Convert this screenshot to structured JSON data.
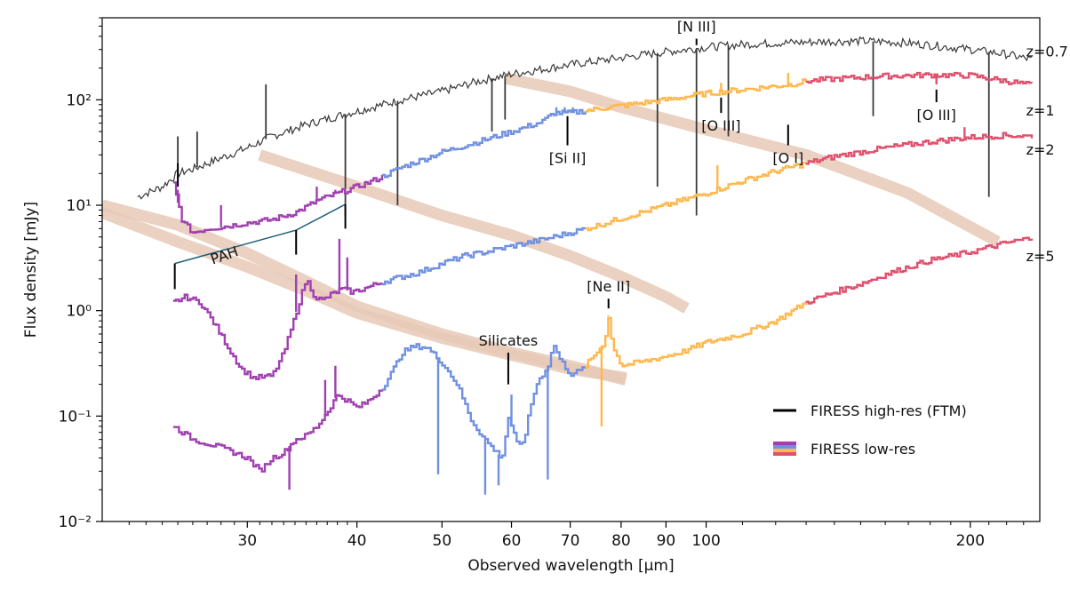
{
  "chart_data": {
    "type": "line",
    "xlabel": "Observed wavelength [μm]",
    "ylabel": "Flux density [mJy]",
    "xscale": "log",
    "yscale": "log",
    "xlim": [
      20.5,
      240
    ],
    "ylim": [
      0.01,
      600
    ],
    "grid": false,
    "x_ticks": [
      {
        "value": 30,
        "label": "30"
      },
      {
        "value": 40,
        "label": "40"
      },
      {
        "value": 50,
        "label": "50"
      },
      {
        "value": 60,
        "label": "60"
      },
      {
        "value": 70,
        "label": "70"
      },
      {
        "value": 80,
        "label": "80"
      },
      {
        "value": 90,
        "label": "90"
      },
      {
        "value": 100,
        "label": "100"
      },
      {
        "value": 200,
        "label": "200"
      }
    ],
    "y_ticks": [
      {
        "value": 0.01,
        "label": "10⁻²"
      },
      {
        "value": 0.1,
        "label": "10⁻¹"
      },
      {
        "value": 1,
        "label": "10⁰"
      },
      {
        "value": 10,
        "label": "10¹"
      },
      {
        "value": 100,
        "label": "10²"
      }
    ],
    "band_colors": [
      "#a040b0",
      "#7090e0",
      "#ffb84d",
      "#e0506e"
    ],
    "band_edges": [
      43,
      73,
      130
    ],
    "highres_color": "#3a3a3a",
    "series": [
      {
        "name": "z=0.7",
        "mode": "highres",
        "points": [
          [
            22.5,
            12
          ],
          [
            24,
            15
          ],
          [
            25,
            20
          ],
          [
            26,
            22
          ],
          [
            28,
            28
          ],
          [
            30,
            35
          ],
          [
            32,
            45
          ],
          [
            35,
            58
          ],
          [
            38,
            70
          ],
          [
            40,
            78
          ],
          [
            45,
            100
          ],
          [
            50,
            120
          ],
          [
            55,
            150
          ],
          [
            60,
            175
          ],
          [
            65,
            195
          ],
          [
            70,
            215
          ],
          [
            80,
            250
          ],
          [
            90,
            285
          ],
          [
            100,
            315
          ],
          [
            110,
            335
          ],
          [
            120,
            345
          ],
          [
            130,
            352
          ],
          [
            140,
            358
          ],
          [
            150,
            360
          ],
          [
            160,
            355
          ],
          [
            170,
            345
          ],
          [
            180,
            330
          ],
          [
            200,
            300
          ],
          [
            220,
            270
          ],
          [
            235,
            240
          ]
        ],
        "spikes": [
          [
            25,
            45
          ],
          [
            26.3,
            50
          ],
          [
            31.5,
            140
          ],
          [
            38.8,
            8
          ],
          [
            44.5,
            10
          ],
          [
            57,
            50
          ],
          [
            59,
            65
          ],
          [
            88,
            15
          ],
          [
            97.5,
            8
          ],
          [
            106,
            45
          ],
          [
            155,
            70
          ],
          [
            210,
            12
          ]
        ]
      },
      {
        "name": "z=1",
        "mode": "lowres",
        "points": [
          [
            24.7,
            16
          ],
          [
            25.3,
            7
          ],
          [
            26,
            5.5
          ],
          [
            27,
            6
          ],
          [
            28,
            6.2
          ],
          [
            30,
            6.8
          ],
          [
            32,
            7.3
          ],
          [
            34,
            8.5
          ],
          [
            36,
            11
          ],
          [
            37,
            12
          ],
          [
            40,
            15
          ],
          [
            42,
            17.5
          ],
          [
            45,
            23
          ],
          [
            48,
            28
          ],
          [
            50,
            32
          ],
          [
            55,
            40
          ],
          [
            60,
            50
          ],
          [
            65,
            62
          ],
          [
            67,
            75
          ],
          [
            70,
            75
          ],
          [
            75,
            82
          ],
          [
            80,
            88
          ],
          [
            90,
            100
          ],
          [
            100,
            115
          ],
          [
            110,
            125
          ],
          [
            120,
            135
          ],
          [
            125,
            140
          ],
          [
            130,
            150
          ],
          [
            140,
            158
          ],
          [
            160,
            168
          ],
          [
            180,
            172
          ],
          [
            200,
            170
          ],
          [
            220,
            150
          ],
          [
            235,
            138
          ]
        ],
        "spikes": [
          [
            25,
            14
          ],
          [
            28,
            10
          ],
          [
            36,
            15
          ],
          [
            37.8,
            14
          ],
          [
            67.5,
            85
          ],
          [
            69,
            85
          ],
          [
            70.5,
            85
          ],
          [
            104,
            145
          ],
          [
            124,
            180
          ],
          [
            183,
            140
          ]
        ]
      },
      {
        "name": "z=2",
        "mode": "lowres",
        "points": [
          [
            24.7,
            1.2
          ],
          [
            25.5,
            1.35
          ],
          [
            26.5,
            1.2
          ],
          [
            27.5,
            0.75
          ],
          [
            28.5,
            0.45
          ],
          [
            29.5,
            0.28
          ],
          [
            30.5,
            0.23
          ],
          [
            32,
            0.24
          ],
          [
            33,
            0.4
          ],
          [
            34,
            0.9
          ],
          [
            35,
            2.0
          ],
          [
            35.8,
            1.35
          ],
          [
            36.5,
            1.25
          ],
          [
            37.5,
            1.45
          ],
          [
            38.5,
            1.6
          ],
          [
            39.5,
            1.5
          ],
          [
            41,
            1.65
          ],
          [
            43,
            1.9
          ],
          [
            45,
            2.1
          ],
          [
            47,
            2.3
          ],
          [
            50,
            2.8
          ],
          [
            53,
            3.3
          ],
          [
            56,
            3.6
          ],
          [
            60,
            4.1
          ],
          [
            65,
            4.7
          ],
          [
            70,
            5.5
          ],
          [
            75,
            6.4
          ],
          [
            80,
            7.5
          ],
          [
            90,
            10
          ],
          [
            100,
            13
          ],
          [
            110,
            17
          ],
          [
            120,
            21
          ],
          [
            130,
            25
          ],
          [
            140,
            29
          ],
          [
            160,
            35
          ],
          [
            180,
            40
          ],
          [
            200,
            44
          ],
          [
            220,
            46
          ],
          [
            235,
            45
          ]
        ],
        "spikes": [
          [
            34.1,
            2.2
          ],
          [
            38.2,
            4.8
          ],
          [
            39,
            3.2
          ],
          [
            103,
            24
          ],
          [
            197,
            55
          ]
        ]
      },
      {
        "name": "z=5",
        "mode": "lowres",
        "points": [
          [
            24.7,
            0.08
          ],
          [
            26,
            0.06
          ],
          [
            27,
            0.055
          ],
          [
            28,
            0.05
          ],
          [
            29,
            0.045
          ],
          [
            30,
            0.04
          ],
          [
            31,
            0.03
          ],
          [
            32,
            0.04
          ],
          [
            33,
            0.045
          ],
          [
            34,
            0.06
          ],
          [
            35,
            0.065
          ],
          [
            36,
            0.08
          ],
          [
            37,
            0.11
          ],
          [
            38,
            0.16
          ],
          [
            39,
            0.14
          ],
          [
            40,
            0.12
          ],
          [
            41,
            0.135
          ],
          [
            42,
            0.16
          ],
          [
            43,
            0.2
          ],
          [
            44,
            0.28
          ],
          [
            45,
            0.4
          ],
          [
            46.5,
            0.46
          ],
          [
            48,
            0.45
          ],
          [
            50,
            0.32
          ],
          [
            52,
            0.2
          ],
          [
            54,
            0.09
          ],
          [
            55.5,
            0.065
          ],
          [
            57,
            0.05
          ],
          [
            58.5,
            0.04
          ],
          [
            59.5,
            0.1
          ],
          [
            61,
            0.05
          ],
          [
            62,
            0.06
          ],
          [
            63,
            0.12
          ],
          [
            64,
            0.2
          ],
          [
            66,
            0.3
          ],
          [
            67,
            0.48
          ],
          [
            68,
            0.35
          ],
          [
            70,
            0.25
          ],
          [
            72,
            0.27
          ],
          [
            74,
            0.35
          ],
          [
            76.5,
            0.5
          ],
          [
            77.4,
            0.88
          ],
          [
            78,
            0.5
          ],
          [
            80,
            0.3
          ],
          [
            85,
            0.33
          ],
          [
            90,
            0.37
          ],
          [
            95,
            0.42
          ],
          [
            100,
            0.5
          ],
          [
            110,
            0.6
          ],
          [
            120,
            0.8
          ],
          [
            130,
            1.2
          ],
          [
            140,
            1.5
          ],
          [
            150,
            1.8
          ],
          [
            160,
            2.2
          ],
          [
            170,
            2.6
          ],
          [
            180,
            3
          ],
          [
            200,
            3.6
          ],
          [
            220,
            4.4
          ],
          [
            235,
            4.9
          ]
        ],
        "spikes": [
          [
            33.5,
            0.02
          ],
          [
            36.8,
            0.22
          ],
          [
            37.8,
            0.3
          ],
          [
            49.5,
            0.028
          ],
          [
            56,
            0.018
          ],
          [
            58,
            0.022
          ],
          [
            60,
            0.16
          ],
          [
            66,
            0.025
          ],
          [
            76,
            0.08
          ],
          [
            77.4,
            0.9
          ]
        ]
      }
    ],
    "series_labels": [
      {
        "text": "z=0.7",
        "x": 237,
        "y": 290
      },
      {
        "text": "z=1",
        "x": 237,
        "y": 80
      },
      {
        "text": "z=2",
        "x": 237,
        "y": 34
      },
      {
        "text": "z=5",
        "x": 237,
        "y": 3.3
      }
    ],
    "tracks": [
      [
        [
          59,
          160
        ],
        [
          70,
          120
        ],
        [
          80,
          85
        ],
        [
          100,
          52
        ],
        [
          130,
          30
        ],
        [
          170,
          13
        ],
        [
          215,
          4.5
        ]
      ],
      [
        [
          31,
          30
        ],
        [
          40,
          15
        ],
        [
          50,
          8
        ],
        [
          60,
          5.2
        ],
        [
          70,
          3.3
        ],
        [
          80,
          2.1
        ],
        [
          90,
          1.35
        ],
        [
          95,
          1.05
        ]
      ],
      [
        [
          20.5,
          10
        ],
        [
          25,
          6.5
        ],
        [
          30,
          3.5
        ],
        [
          35,
          1.9
        ],
        [
          40,
          1.1
        ],
        [
          50,
          0.6
        ],
        [
          60,
          0.4
        ],
        [
          70,
          0.3
        ],
        [
          81,
          0.22
        ]
      ],
      [
        [
          20.5,
          8.5
        ],
        [
          25,
          4.5
        ],
        [
          30,
          2.6
        ],
        [
          35,
          1.55
        ],
        [
          40,
          0.95
        ],
        [
          50,
          0.55
        ],
        [
          60,
          0.38
        ],
        [
          70,
          0.28
        ],
        [
          81,
          0.23
        ]
      ]
    ],
    "track_color": "#e8c9b6",
    "line_markers": [
      {
        "label": "[N III]",
        "x": 97.5,
        "y_top": 380,
        "y_bottom": 330,
        "label_pos": "above"
      },
      {
        "label": "[Si II]",
        "x": 69.5,
        "y_top": 70,
        "y_bottom": 37,
        "label_pos": "below"
      },
      {
        "label": "[O III]",
        "x": 104,
        "y_top": 105,
        "y_bottom": 75,
        "label_pos": "below"
      },
      {
        "label": "[O I]",
        "x": 124,
        "y_top": 58,
        "y_bottom": 37,
        "label_pos": "below"
      },
      {
        "label": "[O III]",
        "x": 183,
        "y_top": 125,
        "y_bottom": 95,
        "label_pos": "below"
      },
      {
        "label": "[Ne II]",
        "x": 77.4,
        "y_top": 1.3,
        "y_bottom": 1.05,
        "label_pos": "above"
      },
      {
        "label": "Silicates",
        "x": 59.5,
        "y_top": 0.4,
        "y_bottom": 0.2,
        "label_pos": "above"
      }
    ],
    "pah": {
      "label": "PAH",
      "color": "#1f5f7a",
      "ticks": [
        {
          "x": 24.8,
          "y_top": 2.8,
          "y_bottom": 1.6
        },
        {
          "x": 34.1,
          "y_top": 5.8,
          "y_bottom": 3.4
        },
        {
          "x": 38.8,
          "y_top": 10.2,
          "y_bottom": 6.0
        }
      ]
    },
    "extra_ticks": [
      {
        "x": 25,
        "y_top": 25,
        "y_bottom": 15
      }
    ],
    "legend": {
      "position": "bottom-right",
      "entries": [
        {
          "label": "FIRESS high-res (FTM)",
          "style": "black-line"
        },
        {
          "label": "FIRESS low-res",
          "style": "band-stack"
        }
      ]
    }
  }
}
